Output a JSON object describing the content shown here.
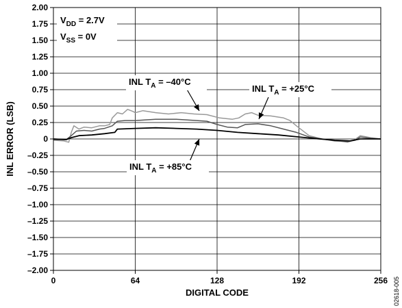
{
  "chart_data": {
    "type": "line",
    "xlabel": "DIGITAL CODE",
    "ylabel": "INL ERROR (LSB)",
    "xlim": [
      0,
      256
    ],
    "ylim": [
      -2.0,
      2.0
    ],
    "x_ticks": [
      "0",
      "64",
      "128",
      "192",
      "256"
    ],
    "y_ticks": [
      "2.00",
      "1.75",
      "1.50",
      "1.25",
      "1.00",
      "0.75",
      "0.50",
      "0.25",
      "0",
      "–0.25",
      "–0.50",
      "–0.75",
      "–1.00",
      "–1.25",
      "–1.50",
      "–1.75",
      "–2.00"
    ],
    "grid": true,
    "conditions": {
      "vdd": {
        "label": "V",
        "sub": "DD",
        "value": " = 2.7V"
      },
      "vss": {
        "label": "V",
        "sub": "SS",
        "value": " = 0V"
      }
    },
    "series": [
      {
        "name": "INL TA = –40°C",
        "label_main": "INL T",
        "label_sub": "A",
        "label_rest": " = –40°C",
        "color": "#999999",
        "points": [
          [
            0,
            -0.02
          ],
          [
            8,
            -0.03
          ],
          [
            12,
            -0.05
          ],
          [
            14,
            0.1
          ],
          [
            16,
            0.2
          ],
          [
            20,
            0.15
          ],
          [
            24,
            0.18
          ],
          [
            30,
            0.17
          ],
          [
            36,
            0.2
          ],
          [
            40,
            0.2
          ],
          [
            44,
            0.22
          ],
          [
            46,
            0.32
          ],
          [
            50,
            0.4
          ],
          [
            54,
            0.38
          ],
          [
            58,
            0.45
          ],
          [
            62,
            0.42
          ],
          [
            64,
            0.4
          ],
          [
            70,
            0.43
          ],
          [
            80,
            0.4
          ],
          [
            90,
            0.38
          ],
          [
            100,
            0.4
          ],
          [
            110,
            0.38
          ],
          [
            120,
            0.37
          ],
          [
            130,
            0.32
          ],
          [
            140,
            0.3
          ],
          [
            145,
            0.32
          ],
          [
            150,
            0.38
          ],
          [
            155,
            0.4
          ],
          [
            160,
            0.36
          ],
          [
            170,
            0.35
          ],
          [
            180,
            0.32
          ],
          [
            185,
            0.28
          ],
          [
            190,
            0.2
          ],
          [
            200,
            0.05
          ],
          [
            210,
            0.0
          ],
          [
            220,
            -0.02
          ],
          [
            230,
            -0.05
          ],
          [
            235,
            -0.02
          ],
          [
            240,
            0.05
          ],
          [
            248,
            0.02
          ],
          [
            256,
            0.0
          ]
        ]
      },
      {
        "name": "INL TA = +25°C",
        "label_main": "INL T",
        "label_sub": "A",
        "label_rest": " = +25°C",
        "color": "#555555",
        "points": [
          [
            0,
            -0.01
          ],
          [
            10,
            -0.01
          ],
          [
            14,
            0.05
          ],
          [
            18,
            0.12
          ],
          [
            24,
            0.13
          ],
          [
            30,
            0.12
          ],
          [
            36,
            0.15
          ],
          [
            40,
            0.16
          ],
          [
            46,
            0.2
          ],
          [
            50,
            0.27
          ],
          [
            56,
            0.28
          ],
          [
            64,
            0.28
          ],
          [
            80,
            0.3
          ],
          [
            96,
            0.3
          ],
          [
            112,
            0.28
          ],
          [
            120,
            0.27
          ],
          [
            128,
            0.22
          ],
          [
            136,
            0.18
          ],
          [
            144,
            0.17
          ],
          [
            150,
            0.22
          ],
          [
            160,
            0.23
          ],
          [
            170,
            0.2
          ],
          [
            180,
            0.15
          ],
          [
            190,
            0.1
          ],
          [
            200,
            0.03
          ],
          [
            210,
            0.0
          ],
          [
            220,
            -0.03
          ],
          [
            230,
            -0.04
          ],
          [
            236,
            -0.02
          ],
          [
            240,
            0.03
          ],
          [
            248,
            0.01
          ],
          [
            256,
            0.0
          ]
        ]
      },
      {
        "name": "INL TA = +85°C",
        "label_main": "INL T",
        "label_sub": "A",
        "label_rest": " = +85°C",
        "color": "#000000",
        "points": [
          [
            0,
            0.0
          ],
          [
            10,
            -0.01
          ],
          [
            14,
            0.02
          ],
          [
            20,
            0.05
          ],
          [
            30,
            0.06
          ],
          [
            40,
            0.08
          ],
          [
            48,
            0.1
          ],
          [
            50,
            0.15
          ],
          [
            64,
            0.16
          ],
          [
            80,
            0.17
          ],
          [
            96,
            0.16
          ],
          [
            112,
            0.15
          ],
          [
            128,
            0.13
          ],
          [
            144,
            0.1
          ],
          [
            160,
            0.08
          ],
          [
            176,
            0.06
          ],
          [
            192,
            0.03
          ],
          [
            208,
            0.0
          ],
          [
            220,
            -0.02
          ],
          [
            232,
            -0.03
          ],
          [
            240,
            0.0
          ],
          [
            248,
            0.0
          ],
          [
            256,
            0.0
          ]
        ]
      }
    ]
  },
  "figure_id": "02618-005"
}
